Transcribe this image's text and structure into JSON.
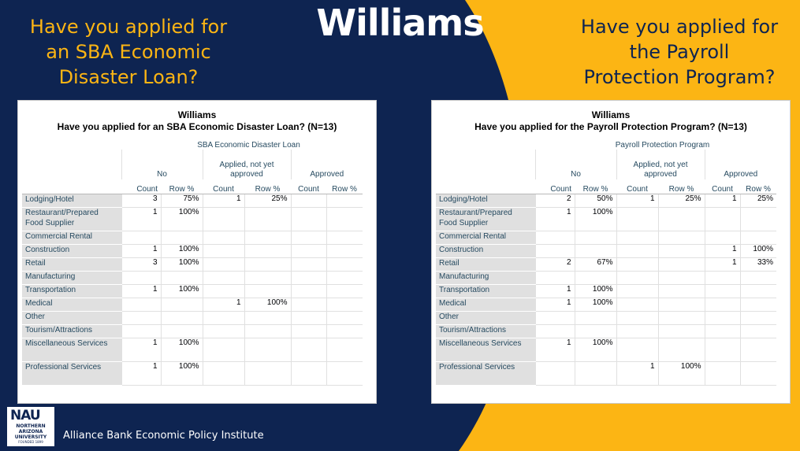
{
  "title": "Williams",
  "left_question": "Have you applied for\nan SBA Economic\nDisaster Loan?",
  "right_question": "Have you applied for\nthe Payroll\nProtection Program?",
  "footer": "Alliance Bank Economic Policy Institute",
  "logo": {
    "main": "NAU",
    "sub": "NORTHERN\nARIZONA\nUNIVERSITY",
    "est": "FOUNDED 1899"
  },
  "colors": {
    "navy": "#0e2451",
    "gold": "#fcb514",
    "label_fill": "#e0e0e0",
    "header_text": "#264a60"
  },
  "sba_table": {
    "title": "Williams",
    "subtitle": "Have you applied for an SBA Economic Disaster Loan? (N=13)",
    "group_header": "SBA Economic Disaster Loan",
    "categories": [
      "No",
      "Applied, not yet approved",
      "Approved"
    ],
    "subheaders": [
      "Count",
      "Row %",
      "Count",
      "Row %",
      "Count",
      "Row %"
    ],
    "rows": [
      {
        "label": "Lodging/Hotel",
        "cells": [
          "3",
          "75%",
          "1",
          "25%",
          "",
          ""
        ]
      },
      {
        "label": "Restaurant/Prepared Food Supplier",
        "cells": [
          "1",
          "100%",
          "",
          "",
          "",
          ""
        ]
      },
      {
        "label": "Commercial Rental",
        "cells": [
          "",
          "",
          "",
          "",
          "",
          ""
        ]
      },
      {
        "label": "Construction",
        "cells": [
          "1",
          "100%",
          "",
          "",
          "",
          ""
        ]
      },
      {
        "label": "Retail",
        "cells": [
          "3",
          "100%",
          "",
          "",
          "",
          ""
        ]
      },
      {
        "label": "Manufacturing",
        "cells": [
          "",
          "",
          "",
          "",
          "",
          ""
        ]
      },
      {
        "label": "Transportation",
        "cells": [
          "1",
          "100%",
          "",
          "",
          "",
          ""
        ]
      },
      {
        "label": "Medical",
        "cells": [
          "",
          "",
          "1",
          "100%",
          "",
          ""
        ]
      },
      {
        "label": "Other",
        "cells": [
          "",
          "",
          "",
          "",
          "",
          ""
        ]
      },
      {
        "label": "Tourism/Attractions",
        "cells": [
          "",
          "",
          "",
          "",
          "",
          ""
        ]
      },
      {
        "label": "Miscellaneous Services",
        "cells": [
          "1",
          "100%",
          "",
          "",
          "",
          ""
        ]
      },
      {
        "label": "Professional Services",
        "cells": [
          "1",
          "100%",
          "",
          "",
          "",
          ""
        ]
      }
    ]
  },
  "ppp_table": {
    "title": "Williams",
    "subtitle": "Have you applied for the Payroll Protection Program? (N=13)",
    "group_header": "Payroll Protection Program",
    "categories": [
      "No",
      "Applied, not yet approved",
      "Approved"
    ],
    "subheaders": [
      "Count",
      "Row %",
      "Count",
      "Row %",
      "Count",
      "Row %"
    ],
    "rows": [
      {
        "label": "Lodging/Hotel",
        "cells": [
          "2",
          "50%",
          "1",
          "25%",
          "1",
          "25%"
        ]
      },
      {
        "label": "Restaurant/Prepared Food Supplier",
        "cells": [
          "1",
          "100%",
          "",
          "",
          "",
          ""
        ]
      },
      {
        "label": "Commercial Rental",
        "cells": [
          "",
          "",
          "",
          "",
          "",
          ""
        ]
      },
      {
        "label": "Construction",
        "cells": [
          "",
          "",
          "",
          "",
          "1",
          "100%"
        ]
      },
      {
        "label": "Retail",
        "cells": [
          "2",
          "67%",
          "",
          "",
          "1",
          "33%"
        ]
      },
      {
        "label": "Manufacturing",
        "cells": [
          "",
          "",
          "",
          "",
          "",
          ""
        ]
      },
      {
        "label": "Transportation",
        "cells": [
          "1",
          "100%",
          "",
          "",
          "",
          ""
        ]
      },
      {
        "label": "Medical",
        "cells": [
          "1",
          "100%",
          "",
          "",
          "",
          ""
        ]
      },
      {
        "label": "Other",
        "cells": [
          "",
          "",
          "",
          "",
          "",
          ""
        ]
      },
      {
        "label": "Tourism/Attractions",
        "cells": [
          "",
          "",
          "",
          "",
          "",
          ""
        ]
      },
      {
        "label": "Miscellaneous Services",
        "cells": [
          "1",
          "100%",
          "",
          "",
          "",
          ""
        ]
      },
      {
        "label": "Professional Services",
        "cells": [
          "",
          "",
          "1",
          "100%",
          "",
          ""
        ]
      }
    ]
  }
}
